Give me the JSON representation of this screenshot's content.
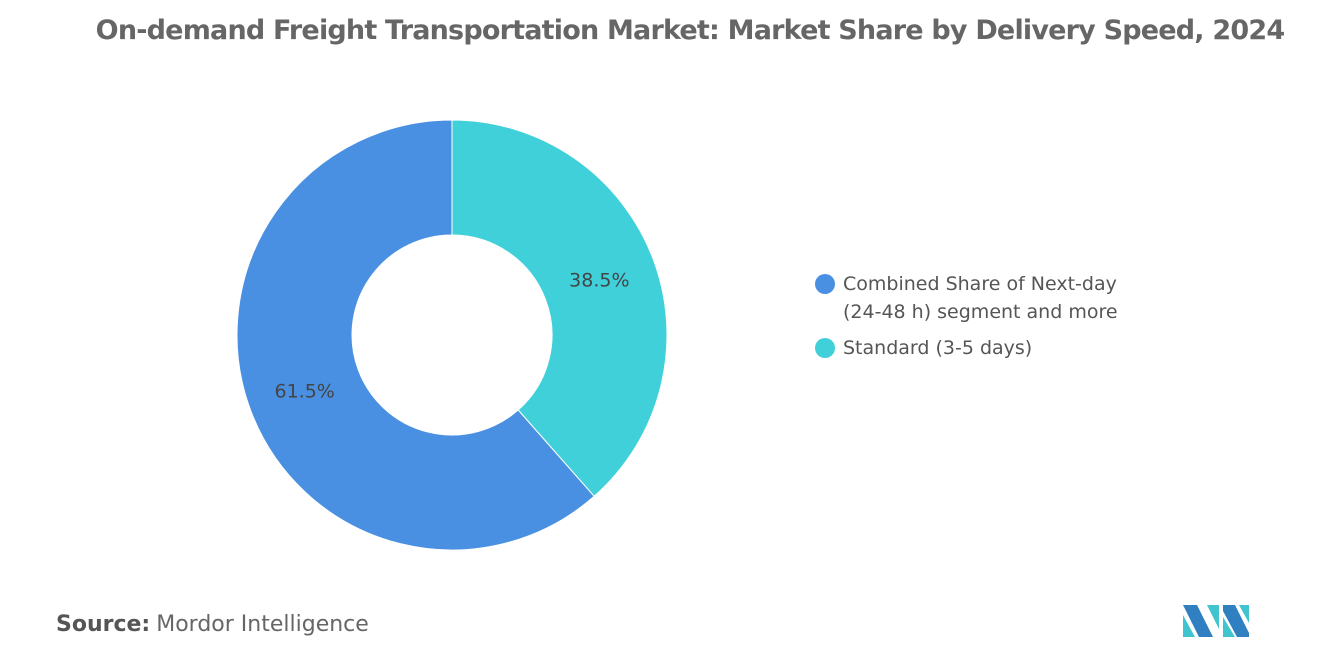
{
  "chart_data": {
    "type": "pie",
    "variant": "donut",
    "title": "On-demand Freight Transportation Market: Market Share by Delivery Speed, 2024",
    "categories": [
      "Combined Share of Next-day (24-48 h) segment and more",
      "Standard (3-5 days)"
    ],
    "values": [
      61.5,
      38.5
    ],
    "data_labels": [
      "61.5%",
      "38.5%"
    ],
    "colors": [
      "#4a90e2",
      "#40d0da"
    ],
    "legend_position": "right"
  },
  "legend": [
    {
      "line1": "Combined Share of Next-day",
      "line2": "(24-48 h) segment and more"
    },
    {
      "line1": "Standard (3-5 days)"
    }
  ],
  "source": {
    "label": "Source:",
    "value": "Mordor Intelligence"
  },
  "logo_text": "Mordor Intelligence"
}
